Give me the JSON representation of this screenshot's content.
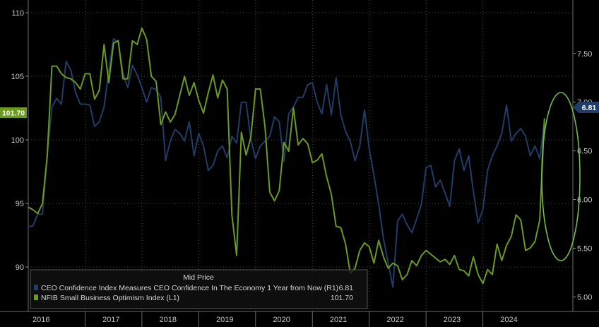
{
  "chart_data": {
    "type": "line",
    "legend": {
      "title": "Mid Price",
      "placement": "bottom-left"
    },
    "series": [
      {
        "name": "CEO Confidence Index Measures CEO Confidence In The Economy 1 Year from Now  (R1)",
        "last_value": "6.81",
        "axis": "right",
        "color": "#1f3d66",
        "values": [
          5.72,
          5.73,
          5.85,
          5.85,
          6.45,
          6.95,
          7.04,
          6.98,
          7.42,
          7.33,
          7.1,
          6.98,
          6.98,
          6.97,
          6.75,
          6.8,
          6.95,
          7.32,
          7.65,
          7.62,
          7.3,
          7.15,
          7.38,
          7.28,
          7.15,
          7.0,
          7.15,
          7.13,
          7.05,
          6.4,
          6.6,
          6.72,
          6.68,
          6.6,
          6.8,
          6.45,
          6.68,
          6.55,
          6.3,
          6.35,
          6.5,
          6.55,
          6.43,
          6.65,
          6.58,
          7.0,
          7.0,
          6.62,
          6.42,
          6.55,
          6.6,
          6.65,
          6.85,
          6.8,
          6.39,
          6.88,
          6.95,
          7.05,
          7.05,
          7.18,
          7.2,
          7.0,
          6.88,
          7.18,
          6.87,
          7.25,
          6.87,
          6.7,
          6.6,
          6.4,
          6.55,
          6.92,
          6.52,
          6.25,
          5.95,
          5.6,
          5.35,
          5.1,
          5.78,
          5.85,
          5.74,
          5.66,
          5.8,
          5.95,
          6.33,
          6.35,
          6.13,
          6.2,
          6.07,
          5.93,
          6.4,
          6.52,
          6.3,
          6.45,
          6.08,
          5.76,
          5.9,
          6.3,
          6.45,
          6.55,
          6.68,
          6.97,
          6.6,
          6.68,
          6.73,
          6.65,
          6.45,
          6.55,
          6.42,
          6.81
        ]
      },
      {
        "name": "NFIB Small Business Optimism Index  (L1)",
        "last_value": "101.70",
        "axis": "left",
        "color": "#6a9a1f",
        "values": [
          94.7,
          94.5,
          94.2,
          95.0,
          98.7,
          105.8,
          105.8,
          105.2,
          104.9,
          104.8,
          104.5,
          104.0,
          105.2,
          105.2,
          103.2,
          103.9,
          107.5,
          104.5,
          107.6,
          107.8,
          104.8,
          104.8,
          107.8,
          107.5,
          108.8,
          107.9,
          105.0,
          104.6,
          101.2,
          102.2,
          101.4,
          102.0,
          103.5,
          105.0,
          103.5,
          104.5,
          103.1,
          102.1,
          103.7,
          105.1,
          103.3,
          104.7,
          104.0,
          94.1,
          90.9,
          100.6,
          98.8,
          100.2,
          104.0,
          104.0,
          101.0,
          95.9,
          95.2,
          96.0,
          99.8,
          99.1,
          102.5,
          99.6,
          100.1,
          99.7,
          98.2,
          98.4,
          98.9,
          97.1,
          95.7,
          93.2,
          93.1,
          91.8,
          89.5,
          89.9,
          91.3,
          91.9,
          91.6,
          90.3,
          92.1,
          90.8,
          89.9,
          90.3,
          90.1,
          89.0,
          89.4,
          90.5,
          90.1,
          90.9,
          91.3,
          91.0,
          90.7,
          90.4,
          90.6,
          90.2,
          90.9,
          89.8,
          89.7,
          89.3,
          90.8,
          89.4,
          88.7,
          89.8,
          89.4,
          91.8,
          90.5,
          91.7,
          92.4,
          94.1,
          93.7,
          91.3,
          91.5,
          92.0,
          93.7,
          101.7
        ]
      }
    ],
    "x_labels": [
      "2016",
      "2017",
      "2018",
      "2019",
      "2020",
      "2021",
      "2022",
      "2023",
      "2024"
    ],
    "x_range": [
      0,
      115
    ],
    "left_axis": {
      "ticks": [
        "90",
        "95",
        "100",
        "105",
        "110"
      ],
      "range": [
        86.5,
        111
      ]
    },
    "right_axis": {
      "ticks": [
        "5.00",
        "5.50",
        "6.00",
        "6.50",
        "7.00",
        "7.50"
      ],
      "range": [
        4.85,
        8.05
      ]
    },
    "grid": true,
    "annotation": {
      "type": "ellipse",
      "color": "#6fc04a",
      "around": "latest values"
    }
  }
}
